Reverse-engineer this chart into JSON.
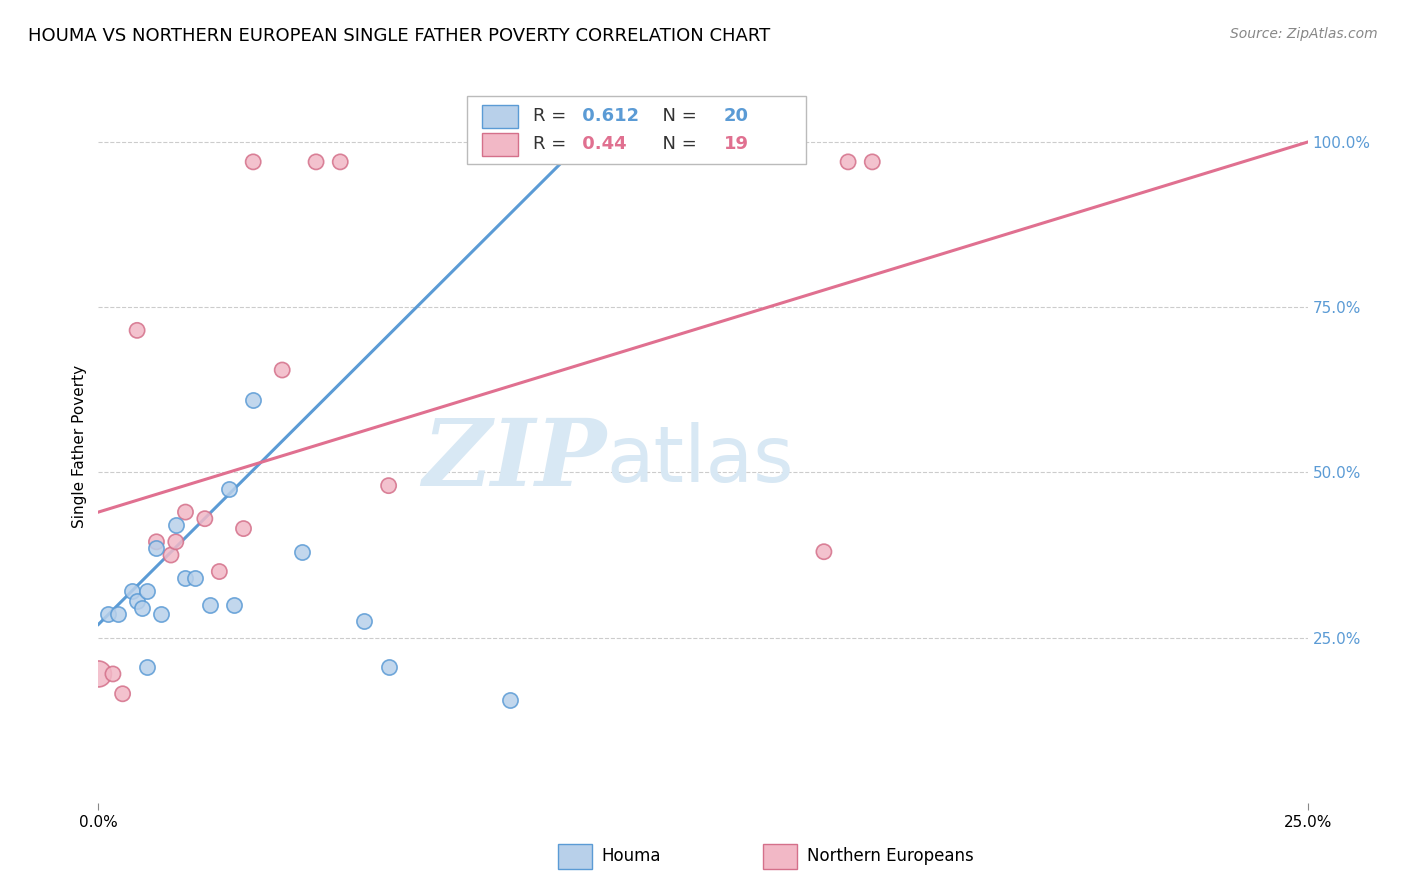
{
  "title": "HOUMA VS NORTHERN EUROPEAN SINGLE FATHER POVERTY CORRELATION CHART",
  "source": "Source: ZipAtlas.com",
  "ylabel": "Single Father Poverty",
  "ytick_labels": [
    "100.0%",
    "75.0%",
    "50.0%",
    "25.0%"
  ],
  "ytick_values": [
    1.0,
    0.75,
    0.5,
    0.25
  ],
  "xmin": 0.0,
  "xmax": 0.25,
  "ymin": 0.0,
  "ymax": 1.08,
  "houma_R": 0.612,
  "houma_N": 20,
  "northern_R": 0.44,
  "northern_N": 19,
  "houma_color": "#b8d0ea",
  "houma_edge_color": "#5b9bd5",
  "northern_color": "#f2b8c6",
  "northern_edge_color": "#d4708a",
  "houma_line_color": "#5b9bd5",
  "northern_line_color": "#e07090",
  "legend_color_blue": "#5b9bd5",
  "legend_color_pink": "#e07090",
  "legend_text_color": "#333333",
  "houma_x": [
    0.002,
    0.004,
    0.007,
    0.008,
    0.009,
    0.01,
    0.01,
    0.012,
    0.013,
    0.016,
    0.018,
    0.02,
    0.023,
    0.027,
    0.028,
    0.032,
    0.042,
    0.055,
    0.06,
    0.085
  ],
  "houma_y": [
    0.285,
    0.285,
    0.32,
    0.305,
    0.295,
    0.32,
    0.205,
    0.385,
    0.285,
    0.42,
    0.34,
    0.34,
    0.3,
    0.475,
    0.3,
    0.61,
    0.38,
    0.275,
    0.205,
    0.155
  ],
  "northern_x": [
    0.0,
    0.003,
    0.005,
    0.008,
    0.012,
    0.015,
    0.016,
    0.018,
    0.022,
    0.025,
    0.03,
    0.032,
    0.038,
    0.045,
    0.05,
    0.06,
    0.15,
    0.155,
    0.16
  ],
  "northern_y": [
    0.195,
    0.195,
    0.165,
    0.715,
    0.395,
    0.375,
    0.395,
    0.44,
    0.43,
    0.35,
    0.415,
    0.97,
    0.655,
    0.97,
    0.97,
    0.48,
    0.38,
    0.97,
    0.97
  ],
  "northern_large_at_zero": true,
  "houma_line_x0": 0.0,
  "houma_line_x1": 0.1,
  "houma_line_y0": 0.27,
  "houma_line_y1": 1.0,
  "northern_line_x0": 0.0,
  "northern_line_x1": 0.25,
  "northern_line_y0": 0.44,
  "northern_line_y1": 1.0,
  "watermark_zip": "ZIP",
  "watermark_atlas": "atlas",
  "watermark_color": "#d8e8f4",
  "background_color": "#ffffff",
  "grid_color": "#cccccc",
  "title_fontsize": 13,
  "axis_label_fontsize": 11,
  "tick_label_fontsize": 11,
  "legend_fontsize": 13,
  "source_fontsize": 10,
  "dot_size": 120,
  "dot_size_large": 350
}
